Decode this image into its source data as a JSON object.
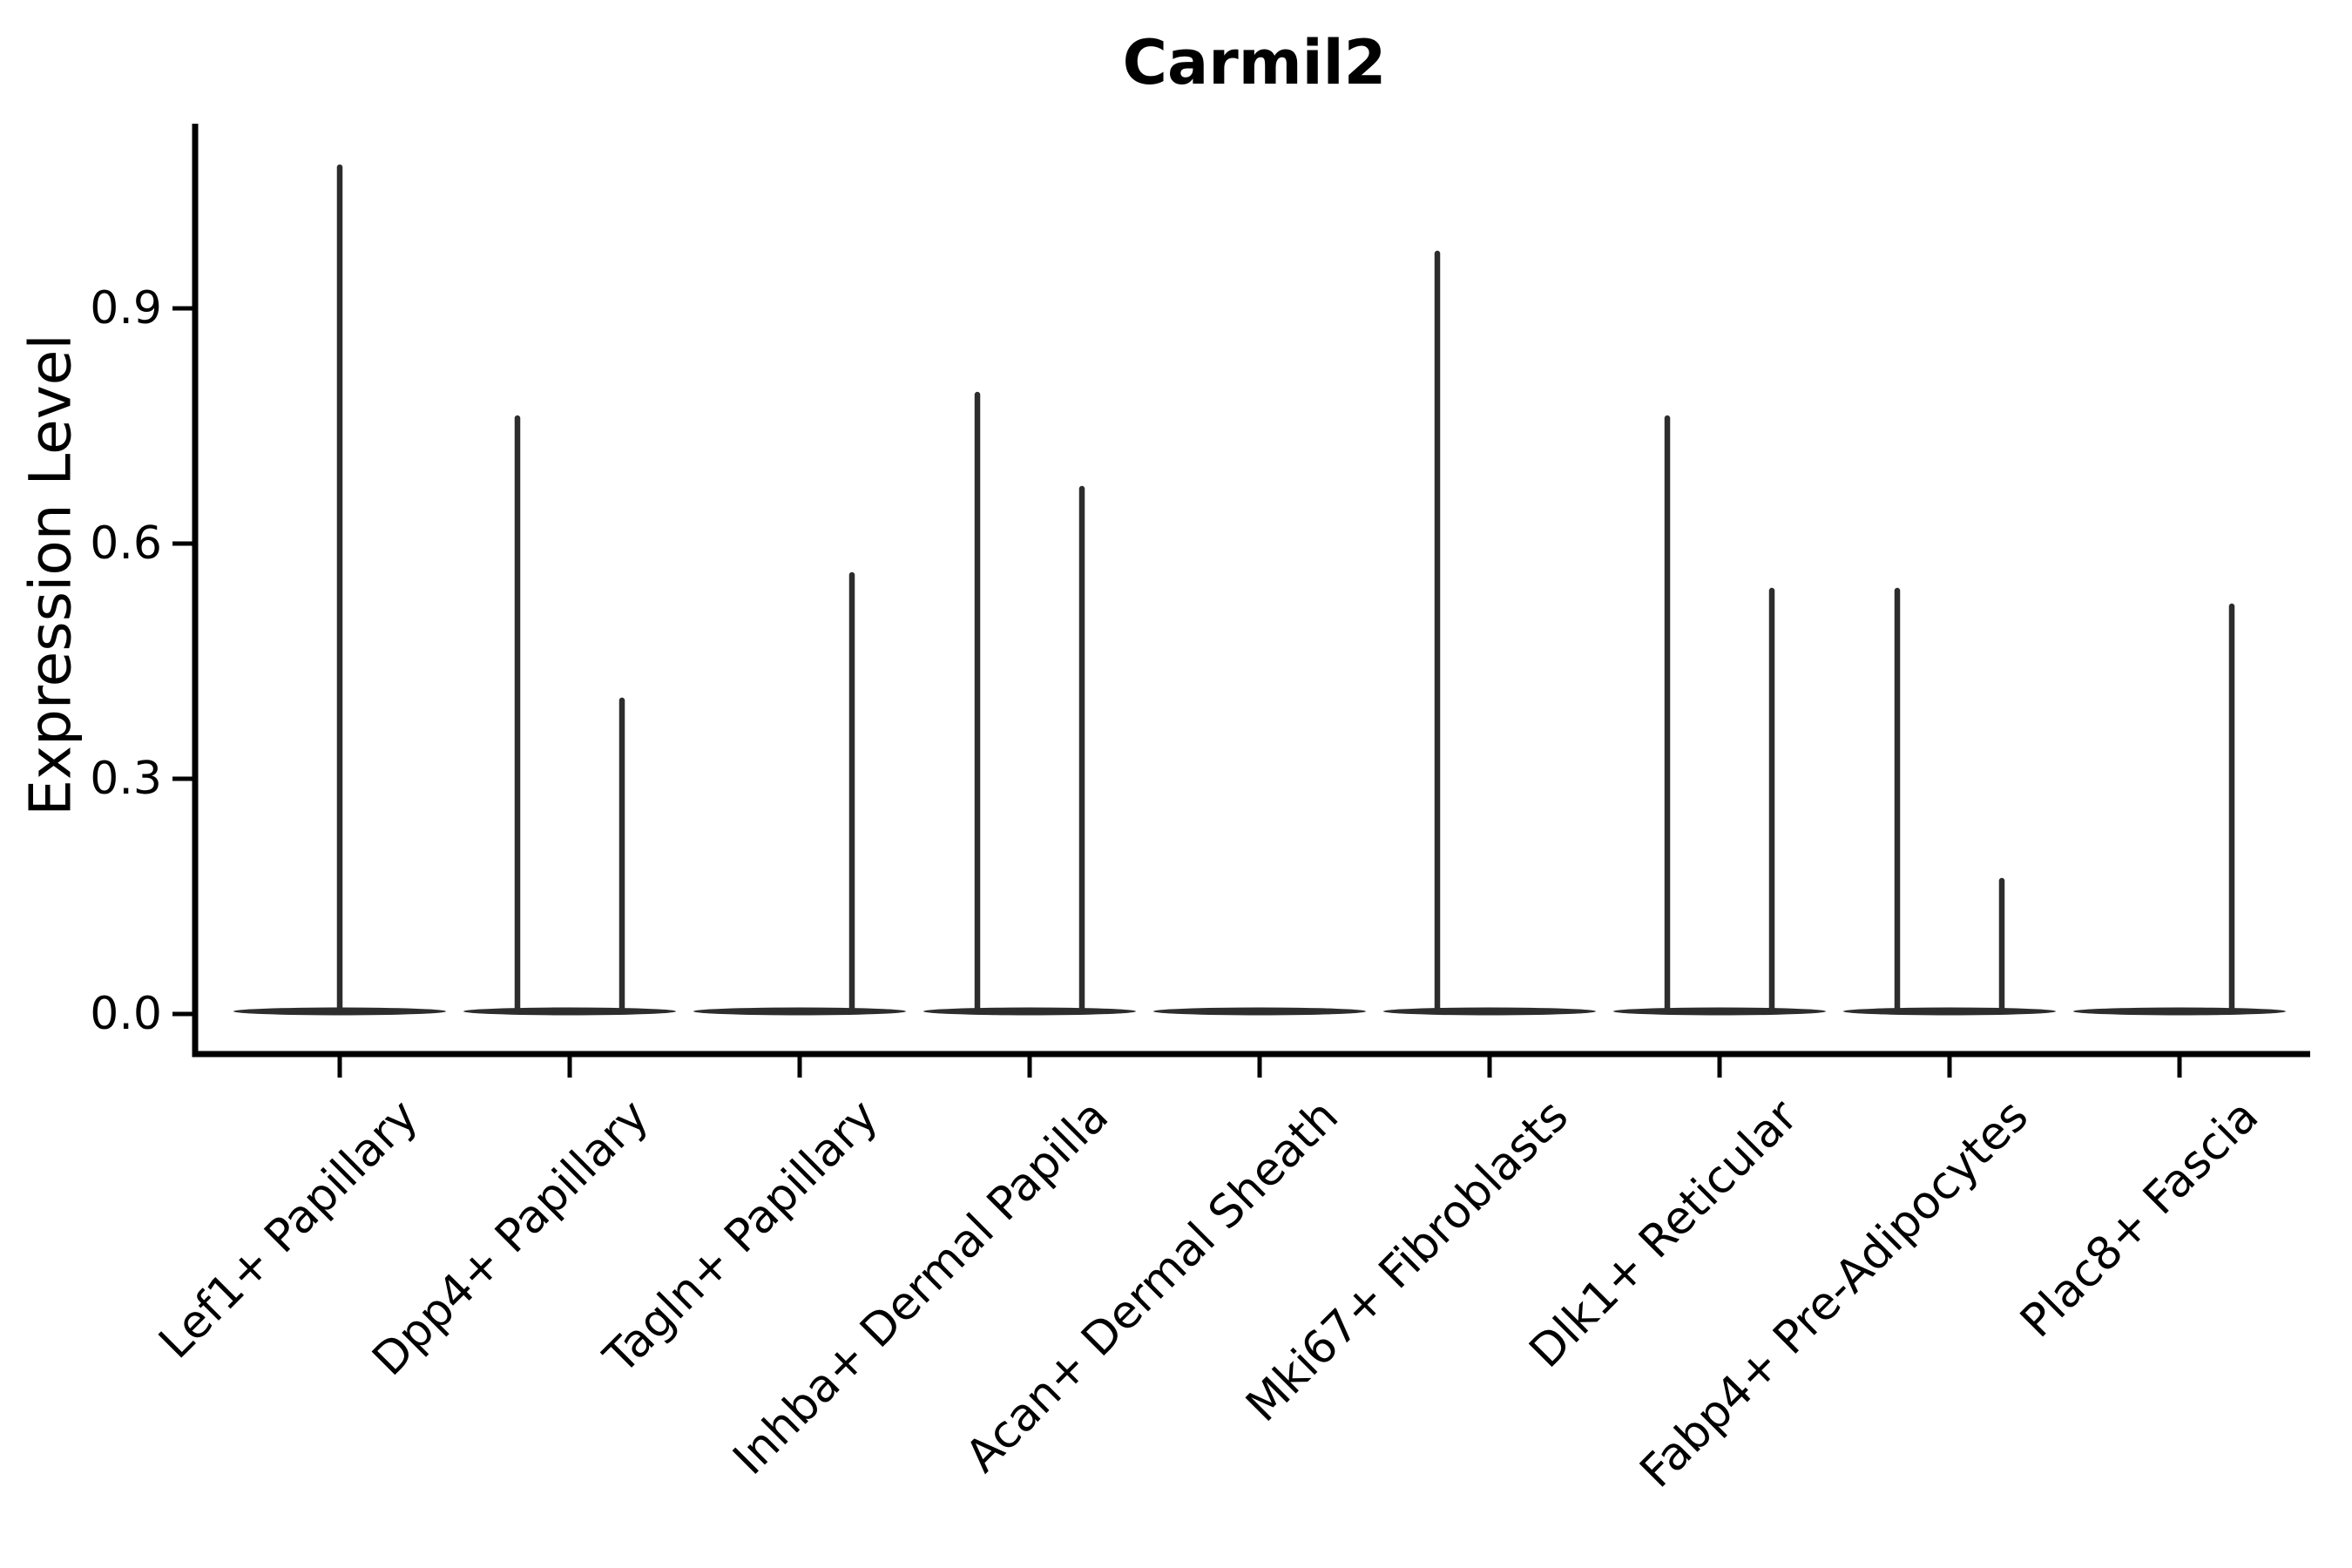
{
  "figure": {
    "background": "#ffffff",
    "line_color": "#2d2d2d",
    "axis_color": "#000000",
    "text_color": "#000000"
  },
  "chart_data": {
    "type": "violin",
    "title": "Carmil2",
    "xlabel": "",
    "ylabel": "Expression Level",
    "ylim": [
      0,
      1.14
    ],
    "yticks": [
      0.0,
      0.3,
      0.6,
      0.9
    ],
    "ytick_labels": [
      "0.0",
      "0.3",
      "0.6",
      "0.9"
    ],
    "grid": false,
    "legend": null,
    "categories": [
      "Lef1+ Papillary",
      "Dpp4+ Papillary",
      "Tagln+ Papillary",
      "Inhba+ Dermal Papilla",
      "Acan+ Dermal Sheath",
      "Mki67+ Fibroblasts",
      "Dlk1+ Reticular",
      "Fabp4+ Pre-Adipocytes",
      "Plac8+ Fascia"
    ],
    "violins": [
      {
        "category": "Lef1+ Papillary",
        "baseline": 0.0,
        "spikes": [
          {
            "position": "center",
            "max": 1.08
          }
        ]
      },
      {
        "category": "Dpp4+ Papillary",
        "baseline": 0.0,
        "spikes": [
          {
            "position": "left",
            "max": 0.76
          },
          {
            "position": "right",
            "max": 0.4
          }
        ]
      },
      {
        "category": "Tagln+ Papillary",
        "baseline": 0.0,
        "spikes": [
          {
            "position": "right",
            "max": 0.56
          }
        ]
      },
      {
        "category": "Inhba+ Dermal Papilla",
        "baseline": 0.0,
        "spikes": [
          {
            "position": "left",
            "max": 0.79
          },
          {
            "position": "right",
            "max": 0.67
          }
        ]
      },
      {
        "category": "Acan+ Dermal Sheath",
        "baseline": 0.0,
        "spikes": []
      },
      {
        "category": "Mki67+ Fibroblasts",
        "baseline": 0.0,
        "spikes": [
          {
            "position": "left",
            "max": 0.97
          }
        ]
      },
      {
        "category": "Dlk1+ Reticular",
        "baseline": 0.0,
        "spikes": [
          {
            "position": "left",
            "max": 0.76
          },
          {
            "position": "right",
            "max": 0.54
          }
        ]
      },
      {
        "category": "Fabp4+ Pre-Adipocytes",
        "baseline": 0.0,
        "spikes": [
          {
            "position": "left",
            "max": 0.54
          },
          {
            "position": "right",
            "max": 0.17
          }
        ]
      },
      {
        "category": "Plac8+ Fascia",
        "baseline": 0.0,
        "spikes": [
          {
            "position": "right",
            "max": 0.52
          }
        ]
      }
    ]
  }
}
